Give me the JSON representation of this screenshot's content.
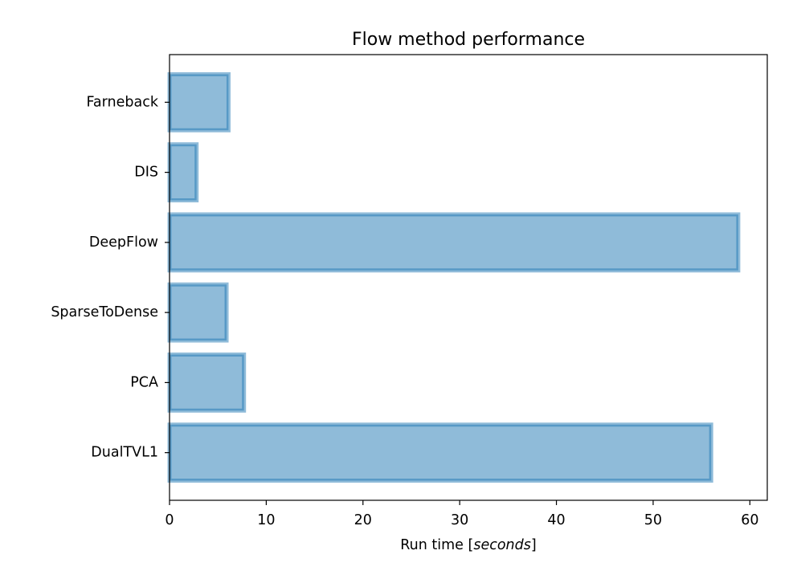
{
  "chart_data": {
    "type": "bar",
    "orientation": "horizontal",
    "title": "Flow method performance",
    "xlabel": {
      "prefix": "Run time [",
      "emphasis": "seconds",
      "suffix": "]"
    },
    "ylabel": "",
    "categories": [
      "Farneback",
      "DIS",
      "DeepFlow",
      "SparseToDense",
      "PCA",
      "DualTVL1"
    ],
    "values": [
      6.1,
      2.8,
      58.8,
      5.9,
      7.7,
      56.0
    ],
    "xlim": [
      0,
      61.8
    ],
    "xticks": [
      0,
      10,
      20,
      30,
      40,
      50,
      60
    ],
    "grid": false,
    "legend": "none",
    "colors": {
      "bar_fill": "#1f77b4",
      "bar_fill_opacity": 0.5,
      "bar_edge": "#1f77b4",
      "bar_edge_opacity": 0.5,
      "axes": "#000000"
    }
  }
}
